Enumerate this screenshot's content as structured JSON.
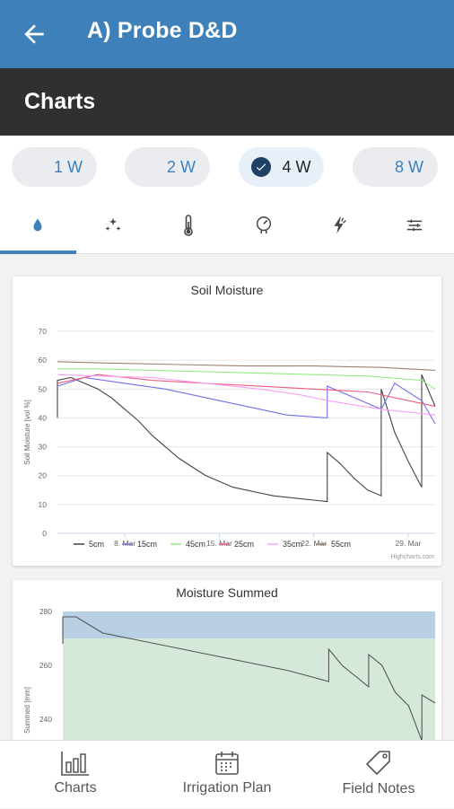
{
  "header": {
    "title": "A) Probe D&D",
    "back_icon": "arrow-left-icon"
  },
  "subheader": {
    "title": "Charts"
  },
  "ranges": [
    {
      "label": "1 W",
      "selected": false
    },
    {
      "label": "2 W",
      "selected": false
    },
    {
      "label": "4 W",
      "selected": true
    },
    {
      "label": "8 W",
      "selected": false
    }
  ],
  "tabs": [
    {
      "icon": "water-drop-icon",
      "active": true
    },
    {
      "icon": "sparkle-icon",
      "active": false
    },
    {
      "icon": "thermometer-icon",
      "active": false
    },
    {
      "icon": "gauge-icon",
      "active": false
    },
    {
      "icon": "lightning-icon",
      "active": false
    },
    {
      "icon": "filter-lines-icon",
      "active": false
    }
  ],
  "colors": {
    "appbar": "#3d80ba",
    "subbar": "#303030",
    "accent": "#3d80ba"
  },
  "chart_data": [
    {
      "type": "line",
      "title": "Soil Moisture",
      "ylabel": "Soil Moisture [vol %]",
      "xlabel": "",
      "ylim": [
        0,
        70
      ],
      "yticks": [
        "0",
        "10",
        "20",
        "30",
        "40",
        "50",
        "60",
        "70"
      ],
      "xlim": [
        "2023-03-03",
        "2023-03-31"
      ],
      "xtick_labels": [
        "8. Mar",
        "15. Mar",
        "22. Mar",
        "29. Mar"
      ],
      "grid": true,
      "legend": "bottom",
      "credit": "Highcharts.com",
      "series": [
        {
          "name": "5cm",
          "color": "#434348",
          "x": [
            "2023-03-03",
            "2023-03-03",
            "2023-03-04",
            "2023-03-05",
            "2023-03-06",
            "2023-03-07",
            "2023-03-08",
            "2023-03-09",
            "2023-03-10",
            "2023-03-11",
            "2023-03-12",
            "2023-03-13",
            "2023-03-14",
            "2023-03-15",
            "2023-03-16",
            "2023-03-17",
            "2023-03-18",
            "2023-03-19",
            "2023-03-20",
            "2023-03-21",
            "2023-03-22",
            "2023-03-23",
            "2023-03-23",
            "2023-03-24",
            "2023-03-25",
            "2023-03-26",
            "2023-03-27",
            "2023-03-27",
            "2023-03-28",
            "2023-03-29",
            "2023-03-30",
            "2023-03-30",
            "2023-03-31"
          ],
          "y": [
            40,
            53,
            54,
            52,
            50,
            47,
            43,
            39,
            34,
            30,
            26,
            23,
            20,
            18,
            16,
            15,
            14,
            13,
            12.5,
            12,
            11.5,
            11,
            28,
            24,
            19,
            15,
            13,
            50,
            35,
            25,
            16,
            55,
            44
          ]
        },
        {
          "name": "15cm",
          "color": "#7070e8",
          "x": [
            "2023-03-03",
            "2023-03-05",
            "2023-03-08",
            "2023-03-11",
            "2023-03-14",
            "2023-03-17",
            "2023-03-20",
            "2023-03-23",
            "2023-03-23",
            "2023-03-25",
            "2023-03-27",
            "2023-03-28",
            "2023-03-30",
            "2023-03-31"
          ],
          "y": [
            51,
            54,
            52,
            50,
            47,
            44,
            41,
            40,
            51,
            47,
            43,
            52,
            46,
            38
          ]
        },
        {
          "name": "45cm",
          "color": "#90ed7d",
          "x": [
            "2023-03-03",
            "2023-03-06",
            "2023-03-10",
            "2023-03-14",
            "2023-03-18",
            "2023-03-22",
            "2023-03-26",
            "2023-03-30",
            "2023-03-31"
          ],
          "y": [
            57,
            57,
            56.5,
            56,
            55.5,
            55,
            54.5,
            53,
            50
          ]
        },
        {
          "name": "25cm",
          "color": "#f15c80",
          "x": [
            "2023-03-03",
            "2023-03-06",
            "2023-03-10",
            "2023-03-14",
            "2023-03-18",
            "2023-03-22",
            "2023-03-26",
            "2023-03-28",
            "2023-03-31"
          ],
          "y": [
            52,
            55,
            53,
            52,
            51,
            50,
            49,
            47,
            44
          ]
        },
        {
          "name": "35cm",
          "color": "#f7a1f5",
          "x": [
            "2023-03-03",
            "2023-03-06",
            "2023-03-10",
            "2023-03-14",
            "2023-03-18",
            "2023-03-21",
            "2023-03-23",
            "2023-03-27",
            "2023-03-31"
          ],
          "y": [
            55,
            54.5,
            54,
            52,
            50,
            48,
            46,
            43,
            41
          ]
        },
        {
          "name": "55cm",
          "color": "#a08070",
          "x": [
            "2023-03-03",
            "2023-03-07",
            "2023-03-12",
            "2023-03-17",
            "2023-03-22",
            "2023-03-27",
            "2023-03-31"
          ],
          "y": [
            59.5,
            59,
            58.5,
            58,
            58,
            57.5,
            56.5
          ]
        }
      ]
    },
    {
      "type": "area",
      "title": "Moisture Summed",
      "ylabel": "Summed [mm]",
      "yticks": [
        "240",
        "260",
        "280"
      ],
      "ylim": [
        225,
        280
      ],
      "xlim": [
        "2023-03-03",
        "2023-03-31"
      ],
      "bands": [
        {
          "from": 270,
          "to": 280,
          "color": "#b9cfe4"
        },
        {
          "from": 225,
          "to": 270,
          "color": "#d5e9da"
        }
      ],
      "series": [
        {
          "name": "",
          "color": "#555555",
          "x": [
            "2023-03-03",
            "2023-03-03",
            "2023-03-04",
            "2023-03-05",
            "2023-03-06",
            "2023-03-08",
            "2023-03-11",
            "2023-03-14",
            "2023-03-17",
            "2023-03-20",
            "2023-03-23",
            "2023-03-23",
            "2023-03-24",
            "2023-03-25",
            "2023-03-26",
            "2023-03-26",
            "2023-03-27",
            "2023-03-28",
            "2023-03-29",
            "2023-03-30",
            "2023-03-30",
            "2023-03-31"
          ],
          "y": [
            268,
            278,
            278,
            275,
            272,
            270,
            267,
            264,
            261,
            258,
            254,
            266,
            260,
            256,
            252,
            264,
            260,
            250,
            245,
            232,
            249,
            246
          ]
        }
      ]
    }
  ],
  "bottom_nav": [
    {
      "label": "Charts",
      "icon": "bar-chart-icon"
    },
    {
      "label": "Irrigation Plan",
      "icon": "calendar-icon"
    },
    {
      "label": "Field Notes",
      "icon": "tag-icon"
    }
  ]
}
